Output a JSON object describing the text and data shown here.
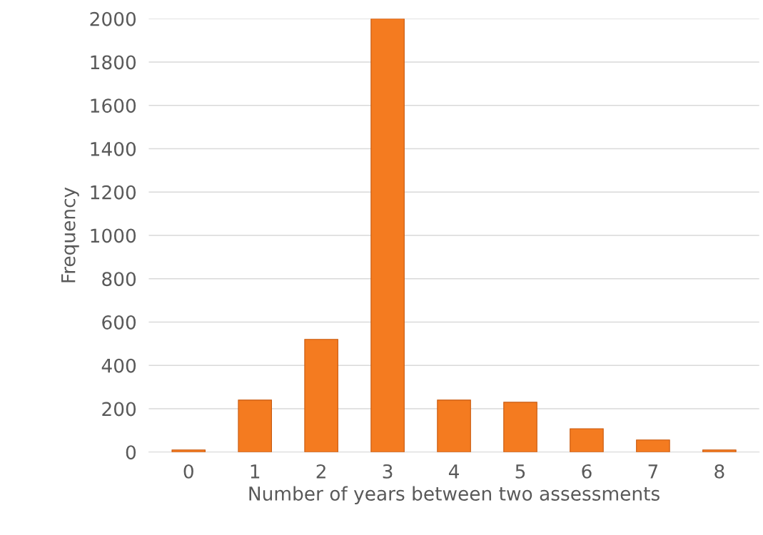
{
  "chart_data": {
    "type": "bar",
    "xlabel": "Number of years between two assessments",
    "ylabel": "Frequency",
    "categories": [
      "0",
      "1",
      "2",
      "3",
      "4",
      "5",
      "6",
      "7",
      "8"
    ],
    "values": [
      10,
      240,
      520,
      2000,
      240,
      230,
      108,
      56,
      10
    ],
    "color": "#f47b20",
    "ylim": [
      0,
      2000
    ],
    "yticks": [
      0,
      200,
      400,
      600,
      800,
      1000,
      1200,
      1400,
      1600,
      1800,
      2000
    ],
    "grid": "y"
  }
}
